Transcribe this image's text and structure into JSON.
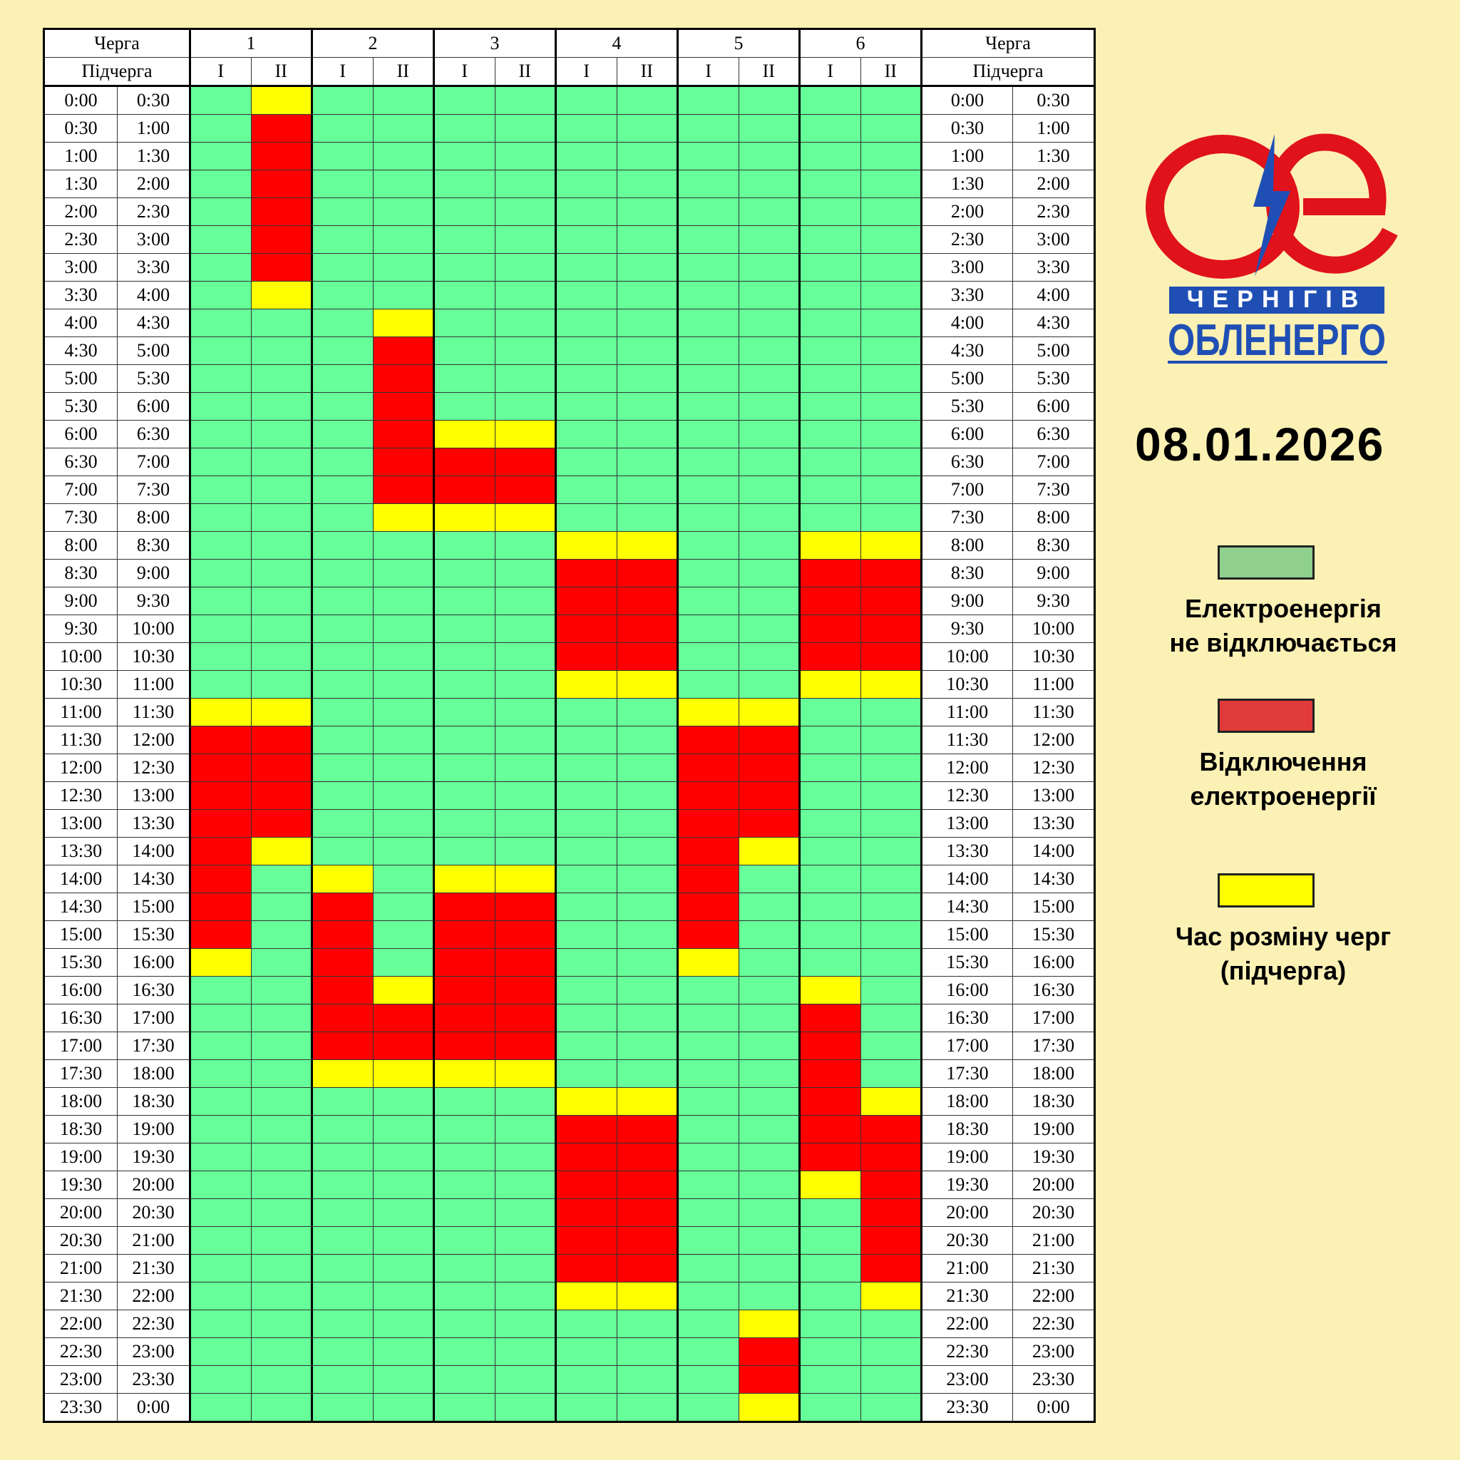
{
  "header": {
    "queue_label": "Черга",
    "subqueue_label": "Підчерга",
    "queues": [
      "1",
      "2",
      "3",
      "4",
      "5",
      "6"
    ],
    "subqueues": [
      "I",
      "II"
    ]
  },
  "times": [
    [
      "0:00",
      "0:30"
    ],
    [
      "0:30",
      "1:00"
    ],
    [
      "1:00",
      "1:30"
    ],
    [
      "1:30",
      "2:00"
    ],
    [
      "2:00",
      "2:30"
    ],
    [
      "2:30",
      "3:00"
    ],
    [
      "3:00",
      "3:30"
    ],
    [
      "3:30",
      "4:00"
    ],
    [
      "4:00",
      "4:30"
    ],
    [
      "4:30",
      "5:00"
    ],
    [
      "5:00",
      "5:30"
    ],
    [
      "5:30",
      "6:00"
    ],
    [
      "6:00",
      "6:30"
    ],
    [
      "6:30",
      "7:00"
    ],
    [
      "7:00",
      "7:30"
    ],
    [
      "7:30",
      "8:00"
    ],
    [
      "8:00",
      "8:30"
    ],
    [
      "8:30",
      "9:00"
    ],
    [
      "9:00",
      "9:30"
    ],
    [
      "9:30",
      "10:00"
    ],
    [
      "10:00",
      "10:30"
    ],
    [
      "10:30",
      "11:00"
    ],
    [
      "11:00",
      "11:30"
    ],
    [
      "11:30",
      "12:00"
    ],
    [
      "12:00",
      "12:30"
    ],
    [
      "12:30",
      "13:00"
    ],
    [
      "13:00",
      "13:30"
    ],
    [
      "13:30",
      "14:00"
    ],
    [
      "14:00",
      "14:30"
    ],
    [
      "14:30",
      "15:00"
    ],
    [
      "15:00",
      "15:30"
    ],
    [
      "15:30",
      "16:00"
    ],
    [
      "16:00",
      "16:30"
    ],
    [
      "16:30",
      "17:00"
    ],
    [
      "17:00",
      "17:30"
    ],
    [
      "17:30",
      "18:00"
    ],
    [
      "18:00",
      "18:30"
    ],
    [
      "18:30",
      "19:00"
    ],
    [
      "19:00",
      "19:30"
    ],
    [
      "19:30",
      "20:00"
    ],
    [
      "20:00",
      "20:30"
    ],
    [
      "20:30",
      "21:00"
    ],
    [
      "21:00",
      "21:30"
    ],
    [
      "21:30",
      "22:00"
    ],
    [
      "22:00",
      "22:30"
    ],
    [
      "22:30",
      "23:00"
    ],
    [
      "23:00",
      "23:30"
    ],
    [
      "23:30",
      "0:00"
    ]
  ],
  "schedule": [
    [
      "#6f9",
      "#ff0",
      "#6f9",
      "#6f9",
      "#6f9",
      "#6f9",
      "#6f9",
      "#6f9",
      "#6f9",
      "#6f9",
      "#6f9",
      "#6f9"
    ],
    [
      "#6f9",
      "#f00",
      "#6f9",
      "#6f9",
      "#6f9",
      "#6f9",
      "#6f9",
      "#6f9",
      "#6f9",
      "#6f9",
      "#6f9",
      "#6f9"
    ],
    [
      "#6f9",
      "#f00",
      "#6f9",
      "#6f9",
      "#6f9",
      "#6f9",
      "#6f9",
      "#6f9",
      "#6f9",
      "#6f9",
      "#6f9",
      "#6f9"
    ],
    [
      "#6f9",
      "#f00",
      "#6f9",
      "#6f9",
      "#6f9",
      "#6f9",
      "#6f9",
      "#6f9",
      "#6f9",
      "#6f9",
      "#6f9",
      "#6f9"
    ],
    [
      "#6f9",
      "#f00",
      "#6f9",
      "#6f9",
      "#6f9",
      "#6f9",
      "#6f9",
      "#6f9",
      "#6f9",
      "#6f9",
      "#6f9",
      "#6f9"
    ],
    [
      "#6f9",
      "#f00",
      "#6f9",
      "#6f9",
      "#6f9",
      "#6f9",
      "#6f9",
      "#6f9",
      "#6f9",
      "#6f9",
      "#6f9",
      "#6f9"
    ],
    [
      "#6f9",
      "#f00",
      "#6f9",
      "#6f9",
      "#6f9",
      "#6f9",
      "#6f9",
      "#6f9",
      "#6f9",
      "#6f9",
      "#6f9",
      "#6f9"
    ],
    [
      "#6f9",
      "#ff0",
      "#6f9",
      "#6f9",
      "#6f9",
      "#6f9",
      "#6f9",
      "#6f9",
      "#6f9",
      "#6f9",
      "#6f9",
      "#6f9"
    ],
    [
      "#6f9",
      "#6f9",
      "#6f9",
      "#ff0",
      "#6f9",
      "#6f9",
      "#6f9",
      "#6f9",
      "#6f9",
      "#6f9",
      "#6f9",
      "#6f9"
    ],
    [
      "#6f9",
      "#6f9",
      "#6f9",
      "#f00",
      "#6f9",
      "#6f9",
      "#6f9",
      "#6f9",
      "#6f9",
      "#6f9",
      "#6f9",
      "#6f9"
    ],
    [
      "#6f9",
      "#6f9",
      "#6f9",
      "#f00",
      "#6f9",
      "#6f9",
      "#6f9",
      "#6f9",
      "#6f9",
      "#6f9",
      "#6f9",
      "#6f9"
    ],
    [
      "#6f9",
      "#6f9",
      "#6f9",
      "#f00",
      "#6f9",
      "#6f9",
      "#6f9",
      "#6f9",
      "#6f9",
      "#6f9",
      "#6f9",
      "#6f9"
    ],
    [
      "#6f9",
      "#6f9",
      "#6f9",
      "#f00",
      "#ff0",
      "#ff0",
      "#6f9",
      "#6f9",
      "#6f9",
      "#6f9",
      "#6f9",
      "#6f9"
    ],
    [
      "#6f9",
      "#6f9",
      "#6f9",
      "#f00",
      "#f00",
      "#f00",
      "#6f9",
      "#6f9",
      "#6f9",
      "#6f9",
      "#6f9",
      "#6f9"
    ],
    [
      "#6f9",
      "#6f9",
      "#6f9",
      "#f00",
      "#f00",
      "#f00",
      "#6f9",
      "#6f9",
      "#6f9",
      "#6f9",
      "#6f9",
      "#6f9"
    ],
    [
      "#6f9",
      "#6f9",
      "#6f9",
      "#ff0",
      "#ff0",
      "#ff0",
      "#6f9",
      "#6f9",
      "#6f9",
      "#6f9",
      "#6f9",
      "#6f9"
    ],
    [
      "#6f9",
      "#6f9",
      "#6f9",
      "#6f9",
      "#6f9",
      "#6f9",
      "#ff0",
      "#ff0",
      "#6f9",
      "#6f9",
      "#ff0",
      "#ff0"
    ],
    [
      "#6f9",
      "#6f9",
      "#6f9",
      "#6f9",
      "#6f9",
      "#6f9",
      "#f00",
      "#f00",
      "#6f9",
      "#6f9",
      "#f00",
      "#f00"
    ],
    [
      "#6f9",
      "#6f9",
      "#6f9",
      "#6f9",
      "#6f9",
      "#6f9",
      "#f00",
      "#f00",
      "#6f9",
      "#6f9",
      "#f00",
      "#f00"
    ],
    [
      "#6f9",
      "#6f9",
      "#6f9",
      "#6f9",
      "#6f9",
      "#6f9",
      "#f00",
      "#f00",
      "#6f9",
      "#6f9",
      "#f00",
      "#f00"
    ],
    [
      "#6f9",
      "#6f9",
      "#6f9",
      "#6f9",
      "#6f9",
      "#6f9",
      "#f00",
      "#f00",
      "#6f9",
      "#6f9",
      "#f00",
      "#f00"
    ],
    [
      "#6f9",
      "#6f9",
      "#6f9",
      "#6f9",
      "#6f9",
      "#6f9",
      "#ff0",
      "#ff0",
      "#6f9",
      "#6f9",
      "#ff0",
      "#ff0"
    ],
    [
      "#ff0",
      "#ff0",
      "#6f9",
      "#6f9",
      "#6f9",
      "#6f9",
      "#6f9",
      "#6f9",
      "#ff0",
      "#ff0",
      "#6f9",
      "#6f9"
    ],
    [
      "#f00",
      "#f00",
      "#6f9",
      "#6f9",
      "#6f9",
      "#6f9",
      "#6f9",
      "#6f9",
      "#f00",
      "#f00",
      "#6f9",
      "#6f9"
    ],
    [
      "#f00",
      "#f00",
      "#6f9",
      "#6f9",
      "#6f9",
      "#6f9",
      "#6f9",
      "#6f9",
      "#f00",
      "#f00",
      "#6f9",
      "#6f9"
    ],
    [
      "#f00",
      "#f00",
      "#6f9",
      "#6f9",
      "#6f9",
      "#6f9",
      "#6f9",
      "#6f9",
      "#f00",
      "#f00",
      "#6f9",
      "#6f9"
    ],
    [
      "#f00",
      "#f00",
      "#6f9",
      "#6f9",
      "#6f9",
      "#6f9",
      "#6f9",
      "#6f9",
      "#f00",
      "#f00",
      "#6f9",
      "#6f9"
    ],
    [
      "#f00",
      "#ff0",
      "#6f9",
      "#6f9",
      "#6f9",
      "#6f9",
      "#6f9",
      "#6f9",
      "#f00",
      "#ff0",
      "#6f9",
      "#6f9"
    ],
    [
      "#f00",
      "#6f9",
      "#ff0",
      "#6f9",
      "#ff0",
      "#ff0",
      "#6f9",
      "#6f9",
      "#f00",
      "#6f9",
      "#6f9",
      "#6f9"
    ],
    [
      "#f00",
      "#6f9",
      "#f00",
      "#6f9",
      "#f00",
      "#f00",
      "#6f9",
      "#6f9",
      "#f00",
      "#6f9",
      "#6f9",
      "#6f9"
    ],
    [
      "#f00",
      "#6f9",
      "#f00",
      "#6f9",
      "#f00",
      "#f00",
      "#6f9",
      "#6f9",
      "#f00",
      "#6f9",
      "#6f9",
      "#6f9"
    ],
    [
      "#ff0",
      "#6f9",
      "#f00",
      "#6f9",
      "#f00",
      "#f00",
      "#6f9",
      "#6f9",
      "#ff0",
      "#6f9",
      "#6f9",
      "#6f9"
    ],
    [
      "#6f9",
      "#6f9",
      "#f00",
      "#ff0",
      "#f00",
      "#f00",
      "#6f9",
      "#6f9",
      "#6f9",
      "#6f9",
      "#ff0",
      "#6f9"
    ],
    [
      "#6f9",
      "#6f9",
      "#f00",
      "#f00",
      "#f00",
      "#f00",
      "#6f9",
      "#6f9",
      "#6f9",
      "#6f9",
      "#f00",
      "#6f9"
    ],
    [
      "#6f9",
      "#6f9",
      "#f00",
      "#f00",
      "#f00",
      "#f00",
      "#6f9",
      "#6f9",
      "#6f9",
      "#6f9",
      "#f00",
      "#6f9"
    ],
    [
      "#6f9",
      "#6f9",
      "#ff0",
      "#ff0",
      "#ff0",
      "#ff0",
      "#6f9",
      "#6f9",
      "#6f9",
      "#6f9",
      "#f00",
      "#6f9"
    ],
    [
      "#6f9",
      "#6f9",
      "#6f9",
      "#6f9",
      "#6f9",
      "#6f9",
      "#ff0",
      "#ff0",
      "#6f9",
      "#6f9",
      "#f00",
      "#ff0"
    ],
    [
      "#6f9",
      "#6f9",
      "#6f9",
      "#6f9",
      "#6f9",
      "#6f9",
      "#f00",
      "#f00",
      "#6f9",
      "#6f9",
      "#f00",
      "#f00"
    ],
    [
      "#6f9",
      "#6f9",
      "#6f9",
      "#6f9",
      "#6f9",
      "#6f9",
      "#f00",
      "#f00",
      "#6f9",
      "#6f9",
      "#f00",
      "#f00"
    ],
    [
      "#6f9",
      "#6f9",
      "#6f9",
      "#6f9",
      "#6f9",
      "#6f9",
      "#f00",
      "#f00",
      "#6f9",
      "#6f9",
      "#ff0",
      "#f00"
    ],
    [
      "#6f9",
      "#6f9",
      "#6f9",
      "#6f9",
      "#6f9",
      "#6f9",
      "#f00",
      "#f00",
      "#6f9",
      "#6f9",
      "#6f9",
      "#f00"
    ],
    [
      "#6f9",
      "#6f9",
      "#6f9",
      "#6f9",
      "#6f9",
      "#6f9",
      "#f00",
      "#f00",
      "#6f9",
      "#6f9",
      "#6f9",
      "#f00"
    ],
    [
      "#6f9",
      "#6f9",
      "#6f9",
      "#6f9",
      "#6f9",
      "#6f9",
      "#f00",
      "#f00",
      "#6f9",
      "#6f9",
      "#6f9",
      "#f00"
    ],
    [
      "#6f9",
      "#6f9",
      "#6f9",
      "#6f9",
      "#6f9",
      "#6f9",
      "#ff0",
      "#ff0",
      "#6f9",
      "#6f9",
      "#6f9",
      "#ff0"
    ],
    [
      "#6f9",
      "#6f9",
      "#6f9",
      "#6f9",
      "#6f9",
      "#6f9",
      "#6f9",
      "#6f9",
      "#6f9",
      "#ff0",
      "#6f9",
      "#6f9"
    ],
    [
      "#6f9",
      "#6f9",
      "#6f9",
      "#6f9",
      "#6f9",
      "#6f9",
      "#6f9",
      "#6f9",
      "#6f9",
      "#f00",
      "#6f9",
      "#6f9"
    ],
    [
      "#6f9",
      "#6f9",
      "#6f9",
      "#6f9",
      "#6f9",
      "#6f9",
      "#6f9",
      "#6f9",
      "#6f9",
      "#f00",
      "#6f9",
      "#6f9"
    ],
    [
      "#6f9",
      "#6f9",
      "#6f9",
      "#6f9",
      "#6f9",
      "#6f9",
      "#6f9",
      "#6f9",
      "#6f9",
      "#ff0",
      "#6f9",
      "#6f9"
    ]
  ],
  "logo": {
    "line1": "ЧЕРНІГІВ",
    "line2": "ОБЛЕНЕРГО"
  },
  "date": "08.01.2026",
  "legend": [
    {
      "color": "#8fd08f",
      "lines": [
        "Електроенергія",
        "не відключається"
      ]
    },
    {
      "color": "#e03a3a",
      "lines": [
        "Відключення",
        "електроенергії"
      ]
    },
    {
      "color": "#ffff00",
      "lines": [
        "Час розміну черг",
        "(підчерга)"
      ]
    }
  ]
}
